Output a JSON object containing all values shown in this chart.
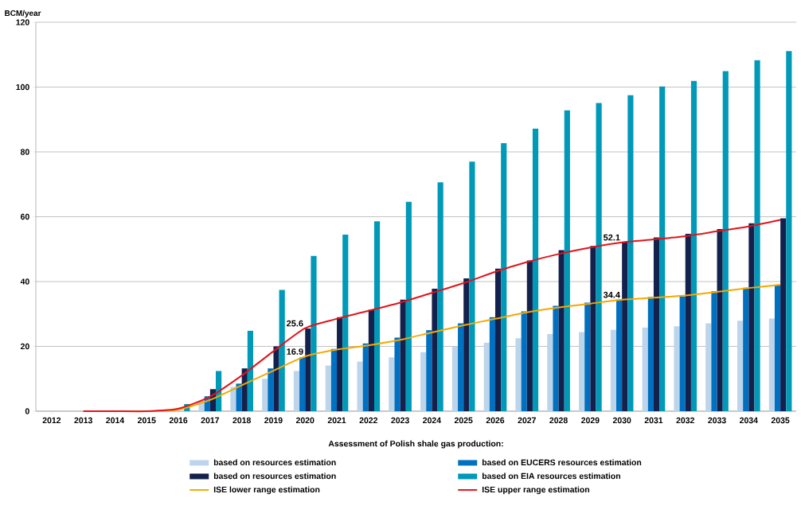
{
  "chart_data": {
    "type": "bar",
    "ylabel": "BCM/year",
    "legend_title": "Assessment of Polish shale gas production:",
    "categories": [
      "2012",
      "2013",
      "2014",
      "2015",
      "2016",
      "2017",
      "2018",
      "2019",
      "2020",
      "2021",
      "2022",
      "2023",
      "2024",
      "2025",
      "2026",
      "2027",
      "2028",
      "2029",
      "2030",
      "2031",
      "2032",
      "2033",
      "2034",
      "2035"
    ],
    "ylim": [
      0,
      120
    ],
    "yticks": [
      0,
      20,
      40,
      60,
      80,
      100,
      120
    ],
    "grid": "y",
    "legend": "bottom",
    "series": [
      {
        "name": "based on resources estimation",
        "color": "#bcd5ea",
        "values": [
          null,
          null,
          null,
          null,
          null,
          3.3,
          7.5,
          10,
          12.4,
          14.1,
          15.3,
          16.6,
          18.2,
          19.9,
          21.1,
          22.5,
          23.8,
          24.4,
          25.1,
          25.8,
          26.2,
          27.1,
          27.9,
          28.6
        ]
      },
      {
        "name": "based on EUCERS resources estimation",
        "color": "#0070c0",
        "values": [
          null,
          null,
          null,
          null,
          null,
          4.6,
          8.5,
          13.2,
          16.6,
          19.2,
          20.9,
          22.7,
          25,
          27.1,
          29,
          30.8,
          32.5,
          33.5,
          34.4,
          35.2,
          35.4,
          37,
          38.1,
          38.9
        ]
      },
      {
        "name": "based on resources estimation",
        "color": "#14214d",
        "values": [
          null,
          null,
          null,
          null,
          null,
          6.8,
          13.2,
          20,
          25.5,
          29,
          31.3,
          34.4,
          37.8,
          41,
          44,
          46.5,
          49.7,
          51,
          52.2,
          53.6,
          54.7,
          56.2,
          58,
          59.5
        ]
      },
      {
        "name": "based on EIA resources estimation",
        "color": "#0099b8",
        "values": [
          null,
          null,
          null,
          null,
          2.2,
          12.4,
          24.8,
          37.4,
          47.9,
          54.5,
          58.6,
          64.6,
          70.6,
          77,
          82.7,
          87.2,
          92.8,
          95.1,
          97.5,
          100.2,
          101.9,
          104.9,
          108.3,
          111.1
        ]
      },
      {
        "name": "ISE lower range estimation",
        "type": "line",
        "color": "#f5a800",
        "values": [
          null,
          0,
          0,
          0,
          0.5,
          3.5,
          8,
          12.5,
          16.9,
          19,
          20.3,
          22,
          24.3,
          26.5,
          28.5,
          30.5,
          32,
          33.2,
          34.4,
          35,
          35.7,
          36.8,
          38,
          39
        ],
        "value_labels": [
          null,
          null,
          null,
          null,
          null,
          null,
          null,
          null,
          "16.9",
          null,
          null,
          null,
          null,
          null,
          null,
          null,
          null,
          null,
          "34.4",
          null,
          null,
          null,
          null,
          null
        ]
      },
      {
        "name": "ISE upper range estimation",
        "type": "line",
        "color": "#e3131b",
        "values": [
          null,
          0,
          0,
          0,
          0.8,
          4.5,
          11,
          18.5,
          25.6,
          28.5,
          31,
          33.5,
          36.5,
          39.5,
          43,
          46,
          48.5,
          50.5,
          52.1,
          53,
          54,
          55.5,
          57,
          59
        ],
        "value_labels": [
          null,
          null,
          null,
          null,
          null,
          null,
          null,
          null,
          "25.6",
          null,
          null,
          null,
          null,
          null,
          null,
          null,
          null,
          null,
          "52.1",
          null,
          null,
          null,
          null,
          null
        ]
      }
    ]
  }
}
